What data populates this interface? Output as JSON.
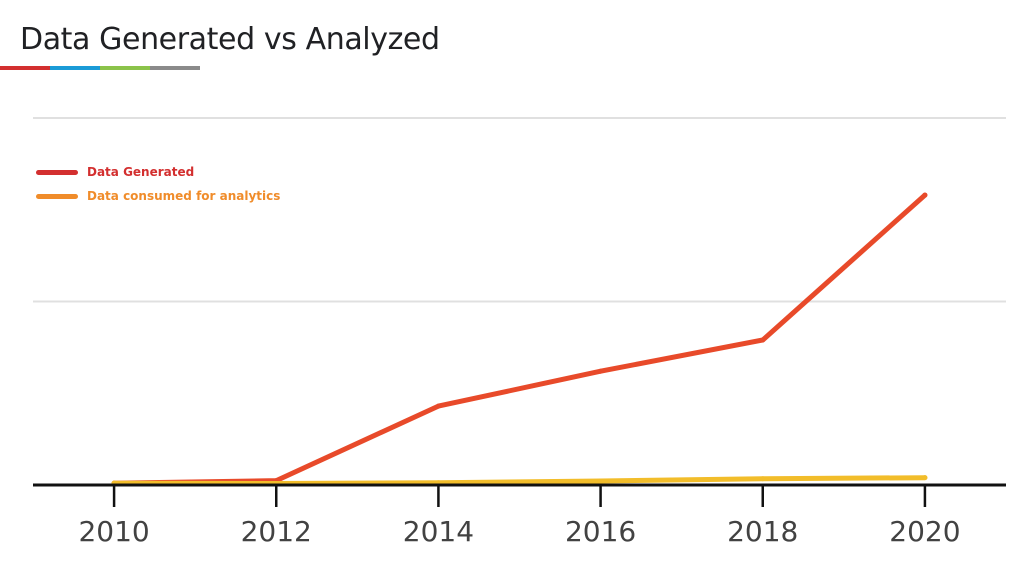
{
  "slide": {
    "title": "Data Generated vs Analyzed",
    "accent_colors": [
      "#d32f2f",
      "#1a9bd7",
      "#8bc34a",
      "#8a8a8a"
    ]
  },
  "chart_data": {
    "type": "line",
    "x": [
      2010,
      2012,
      2014,
      2016,
      2018,
      2020
    ],
    "x_tick_labels": [
      "2010",
      "2012",
      "2014",
      "2016",
      "2018",
      "2020"
    ],
    "series": [
      {
        "name": "Data Generated",
        "color": "#e84a2a",
        "legend_color": "#d32f2f",
        "values": [
          0.5,
          1.2,
          21.5,
          31,
          39.5,
          79
        ]
      },
      {
        "name": "Data consumed for analytics",
        "color": "#f2bd2a",
        "legend_color": "#f08c2a",
        "values": [
          0.5,
          0.4,
          0.6,
          1.1,
          1.7,
          2.0
        ]
      }
    ],
    "xlim": [
      2009,
      2021
    ],
    "ylim": [
      0,
      100
    ],
    "grid": true,
    "y_axis_labels": false,
    "legend_position": "top-left"
  }
}
